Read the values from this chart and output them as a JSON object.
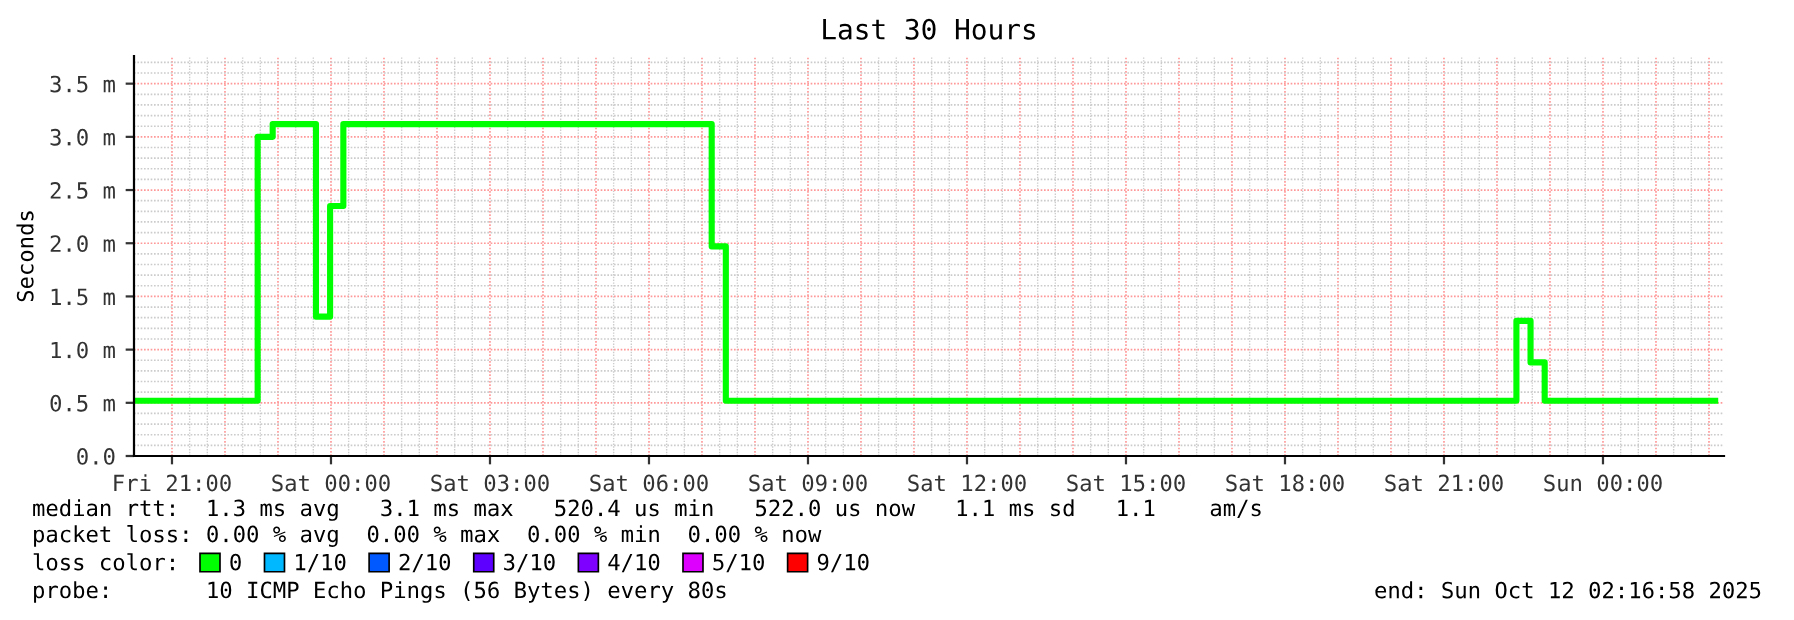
{
  "chart_data": {
    "type": "step",
    "title": "Last 30 Hours",
    "ylabel": "Seconds",
    "x": [
      "2025-10-10T20:17",
      "2025-10-10T22:37",
      "2025-10-10T22:54",
      "2025-10-10T23:43",
      "2025-10-10T23:59",
      "2025-10-11T00:14",
      "2025-10-11T07:11",
      "2025-10-11T07:27",
      "2025-10-11T22:22",
      "2025-10-11T22:38",
      "2025-10-11T22:54",
      "2025-10-12T02:07"
    ],
    "series": [
      {
        "name": "0",
        "color": "#00ff00",
        "values": [
          0.52,
          3.0,
          3.12,
          1.31,
          2.35,
          3.12,
          1.97,
          0.52,
          1.27,
          0.88,
          0.52,
          0.52
        ]
      },
      {
        "name": "1/10",
        "color": "#00b8ff",
        "values": [
          null,
          null,
          null,
          null,
          null,
          null,
          null,
          null,
          null,
          null,
          null,
          null
        ]
      },
      {
        "name": "2/10",
        "color": "#0059ff",
        "values": [
          null,
          null,
          null,
          null,
          null,
          null,
          null,
          null,
          null,
          null,
          null,
          null
        ]
      },
      {
        "name": "3/10",
        "color": "#5e00ff",
        "values": [
          null,
          null,
          null,
          null,
          null,
          null,
          null,
          null,
          null,
          null,
          null,
          null
        ]
      },
      {
        "name": "4/10",
        "color": "#7e00ff",
        "values": [
          null,
          null,
          null,
          null,
          null,
          null,
          null,
          null,
          null,
          null,
          null,
          null
        ]
      },
      {
        "name": "5/10",
        "color": "#dd00ff",
        "values": [
          null,
          null,
          null,
          null,
          null,
          null,
          null,
          null,
          null,
          null,
          null,
          null
        ]
      },
      {
        "name": "9/10",
        "color": "#ff0000",
        "values": [
          null,
          null,
          null,
          null,
          null,
          null,
          null,
          null,
          null,
          null,
          null,
          null
        ]
      }
    ],
    "legend": "bottom",
    "legend_title": "loss color:",
    "grid": true,
    "xlim": [
      "2025-10-10T20:17",
      "2025-10-12T02:17"
    ],
    "xticks": [
      {
        "value": "2025-10-10T21:00",
        "label": "Fri 21:00"
      },
      {
        "value": "2025-10-11T00:00",
        "label": "Sat 00:00"
      },
      {
        "value": "2025-10-11T03:00",
        "label": "Sat 03:00"
      },
      {
        "value": "2025-10-11T06:00",
        "label": "Sat 06:00"
      },
      {
        "value": "2025-10-11T09:00",
        "label": "Sat 09:00"
      },
      {
        "value": "2025-10-11T12:00",
        "label": "Sat 12:00"
      },
      {
        "value": "2025-10-11T15:00",
        "label": "Sat 15:00"
      },
      {
        "value": "2025-10-11T18:00",
        "label": "Sat 18:00"
      },
      {
        "value": "2025-10-11T21:00",
        "label": "Sat 21:00"
      },
      {
        "value": "2025-10-12T00:00",
        "label": "Sun 00:00"
      }
    ],
    "ylim": [
      0,
      3.76
    ],
    "yticks": [
      {
        "value": 0,
        "label": "0.0"
      },
      {
        "value": 0.5,
        "label": "0.5 m"
      },
      {
        "value": 1.0,
        "label": "1.0 m"
      },
      {
        "value": 1.5,
        "label": "1.5 m"
      },
      {
        "value": 2.0,
        "label": "2.0 m"
      },
      {
        "value": 2.5,
        "label": "2.5 m"
      },
      {
        "value": 3.0,
        "label": "3.0 m"
      },
      {
        "value": 3.5,
        "label": "3.5 m"
      }
    ],
    "annotations": [
      "median rtt:  1.3 ms avg   3.1 ms max   520.4 us min   522.0 us now   1.1 ms sd   1.1    am/s",
      "packet loss: 0.00 % avg  0.00 % max  0.00 % min  0.00 % now",
      "probe:       10 ICMP Echo Pings (56 Bytes) every 80s",
      "end: Sun Oct 12 02:16:58 2025"
    ]
  }
}
